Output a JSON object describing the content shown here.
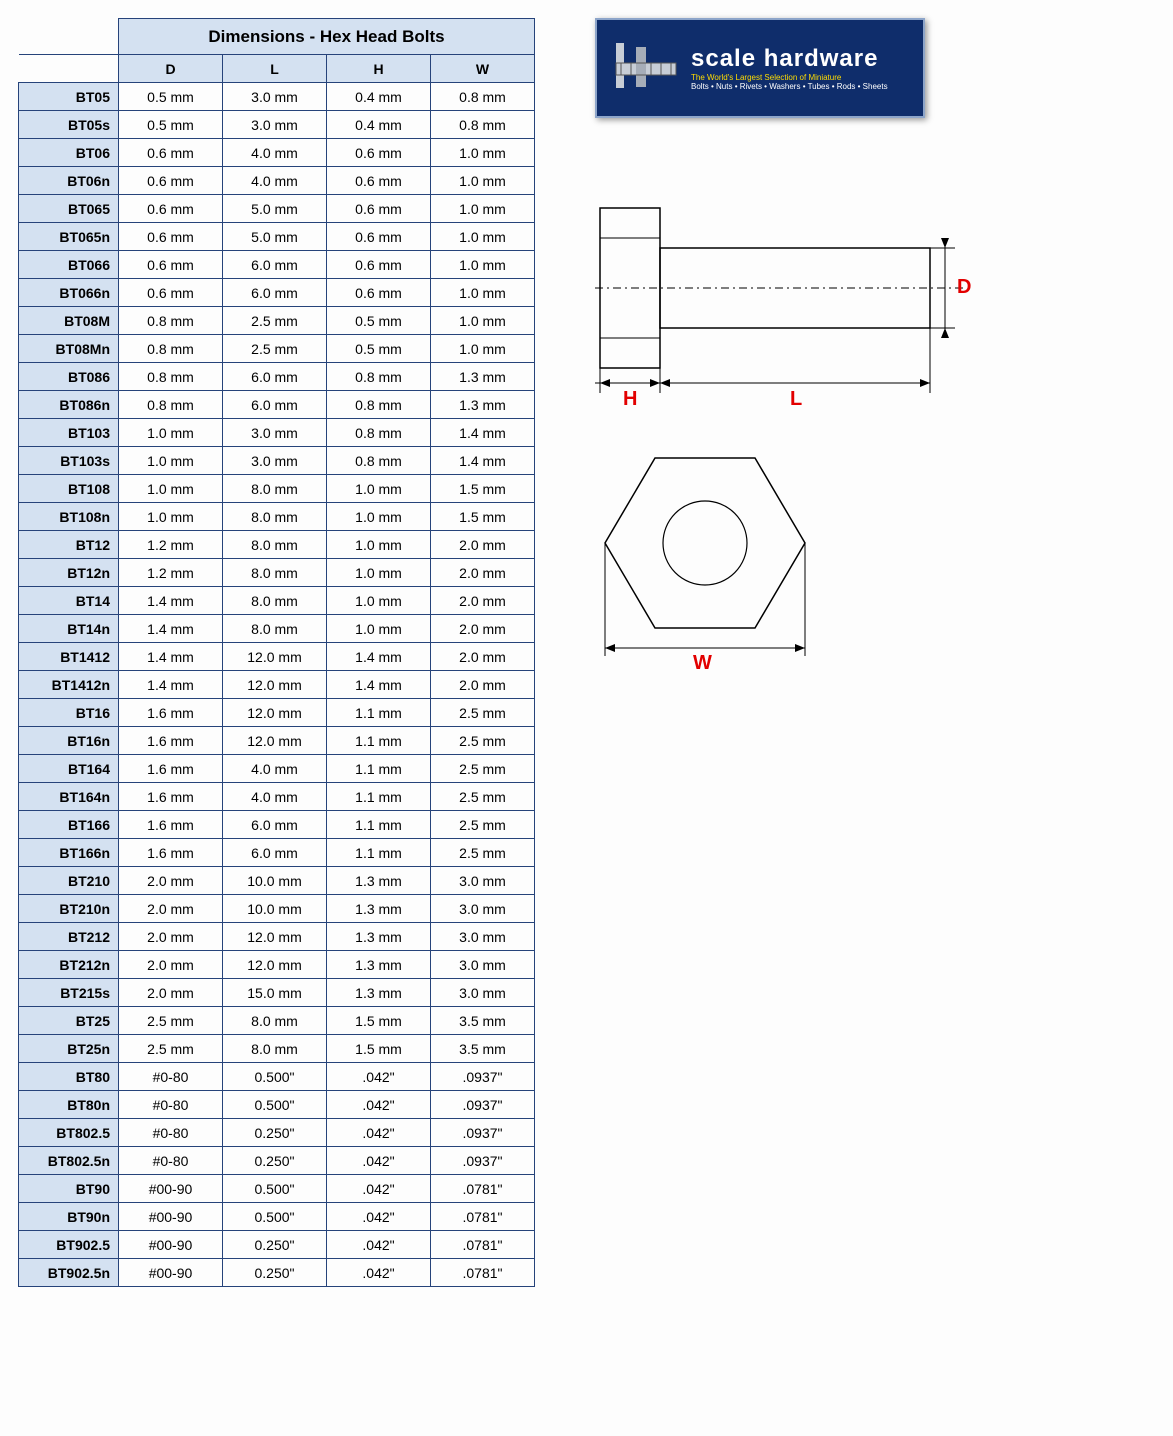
{
  "title": "Dimensions - Hex Head Bolts",
  "columns": [
    "D",
    "L",
    "H",
    "W"
  ],
  "rows": [
    {
      "code": "BT05",
      "d": "0.5 mm",
      "l": "3.0 mm",
      "h": "0.4 mm",
      "w": "0.8 mm"
    },
    {
      "code": "BT05s",
      "d": "0.5 mm",
      "l": "3.0 mm",
      "h": "0.4 mm",
      "w": "0.8 mm"
    },
    {
      "code": "BT06",
      "d": "0.6 mm",
      "l": "4.0 mm",
      "h": "0.6 mm",
      "w": "1.0 mm"
    },
    {
      "code": "BT06n",
      "d": "0.6 mm",
      "l": "4.0 mm",
      "h": "0.6 mm",
      "w": "1.0 mm"
    },
    {
      "code": "BT065",
      "d": "0.6 mm",
      "l": "5.0 mm",
      "h": "0.6 mm",
      "w": "1.0 mm"
    },
    {
      "code": "BT065n",
      "d": "0.6 mm",
      "l": "5.0 mm",
      "h": "0.6 mm",
      "w": "1.0 mm"
    },
    {
      "code": "BT066",
      "d": "0.6 mm",
      "l": "6.0 mm",
      "h": "0.6 mm",
      "w": "1.0 mm"
    },
    {
      "code": "BT066n",
      "d": "0.6 mm",
      "l": "6.0 mm",
      "h": "0.6 mm",
      "w": "1.0 mm"
    },
    {
      "code": "BT08M",
      "d": "0.8 mm",
      "l": "2.5 mm",
      "h": "0.5 mm",
      "w": "1.0 mm"
    },
    {
      "code": "BT08Mn",
      "d": "0.8 mm",
      "l": "2.5 mm",
      "h": "0.5 mm",
      "w": "1.0 mm"
    },
    {
      "code": "BT086",
      "d": "0.8 mm",
      "l": "6.0 mm",
      "h": "0.8 mm",
      "w": "1.3 mm"
    },
    {
      "code": "BT086n",
      "d": "0.8 mm",
      "l": "6.0 mm",
      "h": "0.8 mm",
      "w": "1.3 mm"
    },
    {
      "code": "BT103",
      "d": "1.0 mm",
      "l": "3.0 mm",
      "h": "0.8 mm",
      "w": "1.4 mm"
    },
    {
      "code": "BT103s",
      "d": "1.0 mm",
      "l": "3.0 mm",
      "h": "0.8 mm",
      "w": "1.4 mm"
    },
    {
      "code": "BT108",
      "d": "1.0 mm",
      "l": "8.0 mm",
      "h": "1.0 mm",
      "w": "1.5 mm"
    },
    {
      "code": "BT108n",
      "d": "1.0 mm",
      "l": "8.0 mm",
      "h": "1.0 mm",
      "w": "1.5 mm"
    },
    {
      "code": "BT12",
      "d": "1.2 mm",
      "l": "8.0 mm",
      "h": "1.0 mm",
      "w": "2.0 mm"
    },
    {
      "code": "BT12n",
      "d": "1.2 mm",
      "l": "8.0 mm",
      "h": "1.0 mm",
      "w": "2.0 mm"
    },
    {
      "code": "BT14",
      "d": "1.4 mm",
      "l": "8.0 mm",
      "h": "1.0 mm",
      "w": "2.0 mm"
    },
    {
      "code": "BT14n",
      "d": "1.4 mm",
      "l": "8.0 mm",
      "h": "1.0 mm",
      "w": "2.0 mm"
    },
    {
      "code": "BT1412",
      "d": "1.4 mm",
      "l": "12.0 mm",
      "h": "1.4 mm",
      "w": "2.0 mm"
    },
    {
      "code": "BT1412n",
      "d": "1.4 mm",
      "l": "12.0 mm",
      "h": "1.4 mm",
      "w": "2.0 mm"
    },
    {
      "code": "BT16",
      "d": "1.6 mm",
      "l": "12.0 mm",
      "h": "1.1 mm",
      "w": "2.5 mm"
    },
    {
      "code": "BT16n",
      "d": "1.6 mm",
      "l": "12.0 mm",
      "h": "1.1 mm",
      "w": "2.5 mm"
    },
    {
      "code": "BT164",
      "d": "1.6 mm",
      "l": "4.0 mm",
      "h": "1.1 mm",
      "w": "2.5 mm"
    },
    {
      "code": "BT164n",
      "d": "1.6 mm",
      "l": "4.0 mm",
      "h": "1.1 mm",
      "w": "2.5 mm"
    },
    {
      "code": "BT166",
      "d": "1.6 mm",
      "l": "6.0 mm",
      "h": "1.1 mm",
      "w": "2.5 mm"
    },
    {
      "code": "BT166n",
      "d": "1.6 mm",
      "l": "6.0 mm",
      "h": "1.1 mm",
      "w": "2.5 mm"
    },
    {
      "code": "BT210",
      "d": "2.0 mm",
      "l": "10.0 mm",
      "h": "1.3 mm",
      "w": "3.0 mm"
    },
    {
      "code": "BT210n",
      "d": "2.0 mm",
      "l": "10.0 mm",
      "h": "1.3 mm",
      "w": "3.0 mm"
    },
    {
      "code": "BT212",
      "d": "2.0 mm",
      "l": "12.0 mm",
      "h": "1.3 mm",
      "w": "3.0 mm"
    },
    {
      "code": "BT212n",
      "d": "2.0 mm",
      "l": "12.0 mm",
      "h": "1.3 mm",
      "w": "3.0 mm"
    },
    {
      "code": "BT215s",
      "d": "2.0 mm",
      "l": "15.0 mm",
      "h": "1.3 mm",
      "w": "3.0 mm"
    },
    {
      "code": "BT25",
      "d": "2.5 mm",
      "l": "8.0 mm",
      "h": "1.5 mm",
      "w": "3.5 mm"
    },
    {
      "code": "BT25n",
      "d": "2.5 mm",
      "l": "8.0 mm",
      "h": "1.5 mm",
      "w": "3.5 mm"
    },
    {
      "code": "BT80",
      "d": "#0-80",
      "l": "0.500\"",
      "h": ".042\"",
      "w": ".0937\""
    },
    {
      "code": "BT80n",
      "d": "#0-80",
      "l": "0.500\"",
      "h": ".042\"",
      "w": ".0937\""
    },
    {
      "code": "BT802.5",
      "d": "#0-80",
      "l": "0.250\"",
      "h": ".042\"",
      "w": ".0937\""
    },
    {
      "code": "BT802.5n",
      "d": "#0-80",
      "l": "0.250\"",
      "h": ".042\"",
      "w": ".0937\""
    },
    {
      "code": "BT90",
      "d": "#00-90",
      "l": "0.500\"",
      "h": ".042\"",
      "w": ".0781\""
    },
    {
      "code": "BT90n",
      "d": "#00-90",
      "l": "0.500\"",
      "h": ".042\"",
      "w": ".0781\""
    },
    {
      "code": "BT902.5",
      "d": "#00-90",
      "l": "0.250\"",
      "h": ".042\"",
      "w": ".0781\""
    },
    {
      "code": "BT902.5n",
      "d": "#00-90",
      "l": "0.250\"",
      "h": ".042\"",
      "w": ".0781\""
    }
  ],
  "logo": {
    "main": "scale hardware",
    "sub": "The World's Largest Selection of Miniature",
    "sub2": "Bolts • Nuts • Rivets • Washers • Tubes • Rods • Sheets"
  },
  "labels": {
    "D": "D",
    "L": "L",
    "H": "H",
    "W": "W"
  },
  "colors": {
    "header_bg": "#d4e1f1",
    "border": "#26437a",
    "label": "#e20000",
    "logo_bg": "#0f2d6b"
  }
}
